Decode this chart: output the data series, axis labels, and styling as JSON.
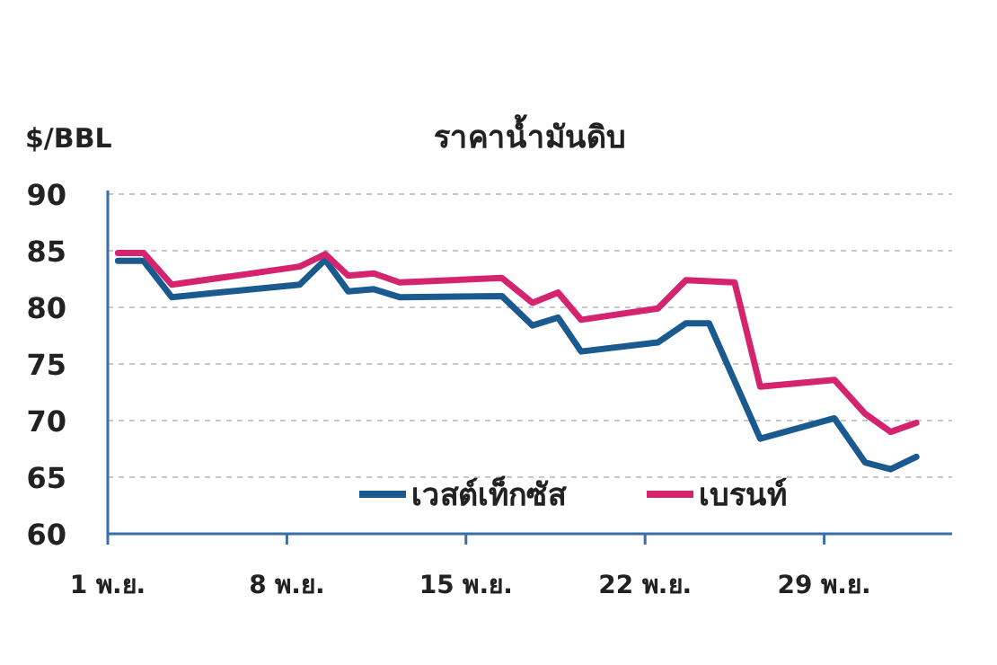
{
  "chart_data": {
    "type": "line",
    "title": "ราคาน้ำมันดิบ",
    "ylabel": "$/BBL",
    "xlim": [
      1,
      34
    ],
    "xticks": [
      {
        "value": 1,
        "label": "1 พ.ย."
      },
      {
        "value": 8,
        "label": "8 พ.ย."
      },
      {
        "value": 15,
        "label": "15 พ.ย."
      },
      {
        "value": 22,
        "label": "22 พ.ย."
      },
      {
        "value": 29,
        "label": "29 พ.ย."
      }
    ],
    "ylim": [
      60,
      90
    ],
    "yticks": [
      60,
      65,
      70,
      75,
      80,
      85,
      90
    ],
    "grid": "y",
    "legend": "bottom",
    "marker": "none",
    "line_style": "solid",
    "series": [
      {
        "name": "เวสต์เท็กซัส",
        "color": "#1b5a8e",
        "x": [
          1.4,
          2.4,
          3.5,
          8.5,
          9.5,
          10.4,
          11.4,
          12.4,
          16.4,
          17.6,
          18.6,
          19.5,
          22.5,
          23.6,
          24.5,
          26.5,
          29.4,
          30.6,
          31.6,
          32.6
        ],
        "values": [
          84.1,
          84.1,
          80.9,
          82,
          84.2,
          81.4,
          81.6,
          80.9,
          81,
          78.4,
          79.1,
          76.1,
          76.9,
          78.6,
          78.6,
          68.4,
          70.2,
          66.3,
          65.7,
          66.8
        ]
      },
      {
        "name": "เบรนท์",
        "color": "#d5246f",
        "x": [
          1.4,
          2.4,
          3.5,
          8.5,
          9.5,
          10.4,
          11.4,
          12.4,
          16.4,
          17.6,
          18.6,
          19.5,
          22.5,
          23.6,
          25.5,
          26.5,
          29.4,
          30.6,
          31.6,
          32.6
        ],
        "values": [
          84.8,
          84.8,
          82,
          83.6,
          84.7,
          82.8,
          83,
          82.2,
          82.6,
          80.4,
          81.3,
          78.9,
          79.9,
          82.4,
          82.2,
          73,
          73.6,
          70.6,
          69,
          69.8
        ]
      }
    ]
  }
}
